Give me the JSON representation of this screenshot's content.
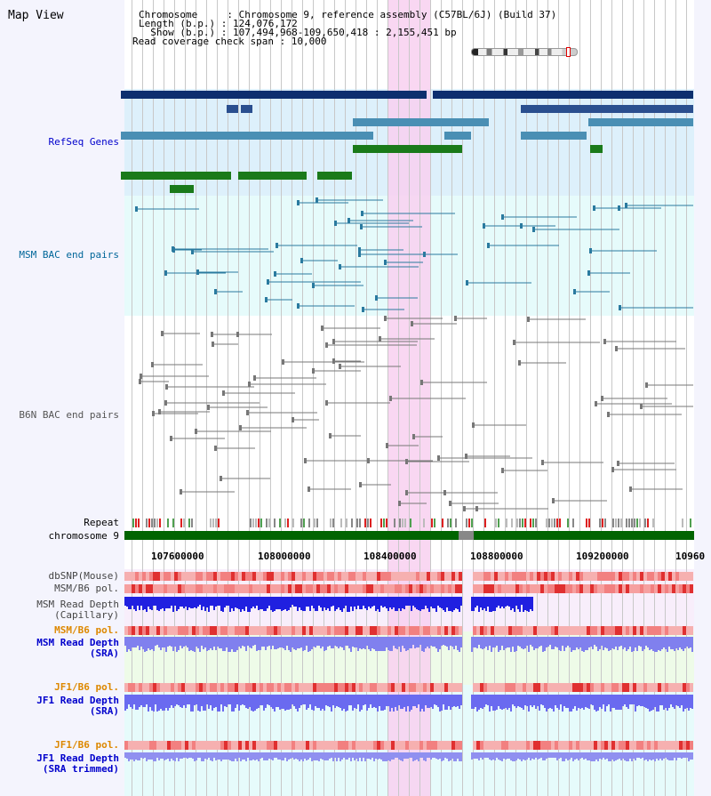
{
  "header": {
    "title": "Map View",
    "line1": "Chromosome     : Chromosome 9, reference assembly (C57BL/6J) (Build 37)",
    "line2": "Length (b.p.) : 124,076,172",
    "line3": "  Show (b.p.) : 107,494,968-109,650,418 : 2,155,451 bp",
    "line4": "Read coverage check span : 10,000"
  },
  "tracks": {
    "refseq": "RefSeq Genes",
    "msm_bac": "MSM BAC end pairs",
    "b6n_bac": "B6N BAC end pairs",
    "repeat": "Repeat",
    "chromosome": "chromosome 9",
    "dbsnp": "dbSNP(Mouse)",
    "msm_b6_pol": "MSM/B6 pol.",
    "msm_read_cap_1": "MSM Read Depth",
    "msm_read_cap_2": "(Capillary)",
    "msm_b6_pol_2": "MSM/B6 pol.",
    "msm_read_sra_1": "MSM Read Depth",
    "msm_read_sra_2": "(SRA)",
    "jf1_b6_pol": "JF1/B6 pol.",
    "jf1_read_sra_1": "JF1 Read Depth",
    "jf1_read_sra_2": "(SRA)",
    "jf1_b6_pol_2": "JF1/B6 pol.",
    "jf1_read_trim_1": "JF1 Read Depth",
    "jf1_read_trim_2": "(SRA trimmed)"
  },
  "ticks": [
    "107600000",
    "108000000",
    "108400000",
    "108800000",
    "109200000",
    "10960"
  ],
  "colors": {
    "refseq_label": "#0000cc",
    "msm_label": "#006699",
    "pol_label": "#dd8800",
    "depth_label": "#0000cc",
    "highlight": "#f8d0f0",
    "refseq_bg": "#ddf0fb",
    "bac_bg": "#e6fbfb",
    "chromosome_bar": "#006400"
  }
}
